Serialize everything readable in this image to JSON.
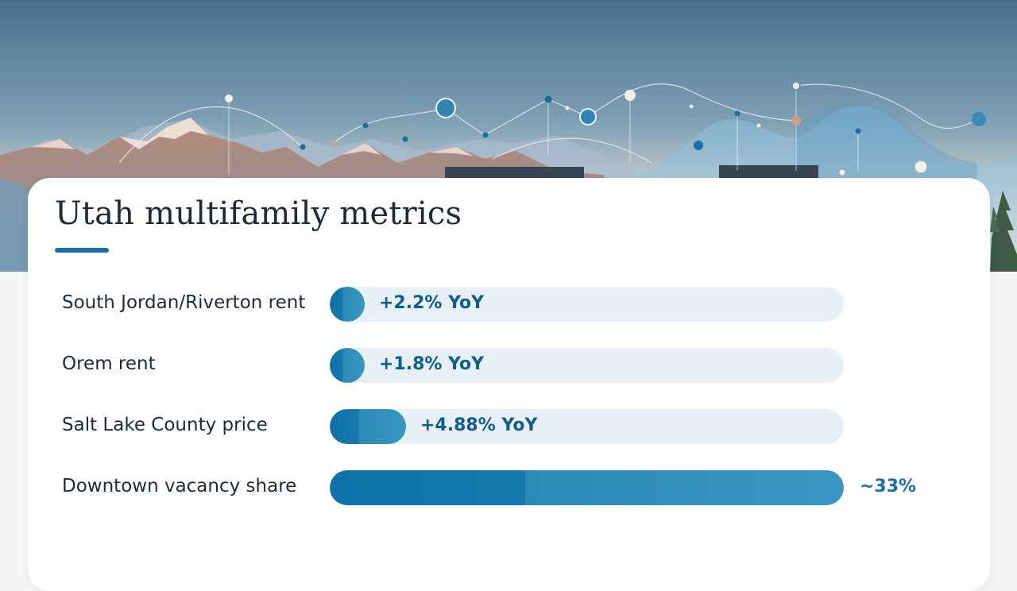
{
  "slide": {
    "title": "Utah multifamily metrics",
    "accent_color": "#1a6fa3",
    "track_color": "#e8f0f7"
  },
  "chart_data": {
    "type": "bar",
    "orientation": "horizontal",
    "title": "Utah multifamily metrics",
    "categories": [
      "South Jordan/Riverton rent",
      "Orem rent",
      "Salt Lake County price",
      "Downtown vacancy share"
    ],
    "values": [
      2.2,
      1.8,
      4.88,
      33
    ],
    "value_labels": [
      "+2.2% YoY",
      "+1.8% YoY",
      "+4.88% YoY",
      "~33%"
    ],
    "xlim": [
      0,
      33
    ],
    "grid": false,
    "legend": "none",
    "bar_color": "#0d72a7"
  }
}
